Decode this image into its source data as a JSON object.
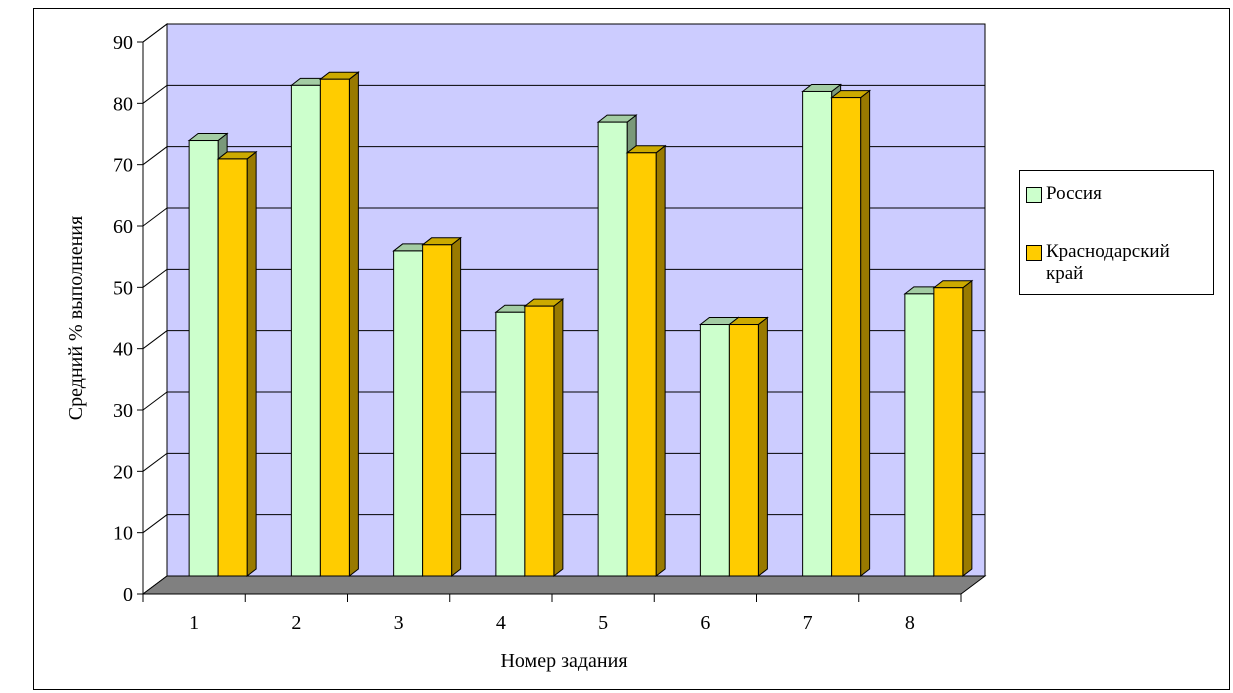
{
  "chart_data": {
    "type": "bar",
    "title": "",
    "xlabel": "Номер задания",
    "ylabel": "Средний % выполнения",
    "categories": [
      "1",
      "2",
      "3",
      "4",
      "5",
      "6",
      "7",
      "8"
    ],
    "ylim": [
      0,
      90
    ],
    "yticks": [
      "0",
      "10",
      "20",
      "30",
      "40",
      "50",
      "60",
      "70",
      "80",
      "90"
    ],
    "grid": true,
    "legend_position": "right",
    "series": [
      {
        "name": "Россия",
        "values": [
          71,
          80,
          53,
          43,
          74,
          41,
          79,
          46
        ],
        "color": "#ccffcc",
        "side_color": "#7a997a",
        "top_color": "#a3cca3"
      },
      {
        "name": "Краснодарский край",
        "values": [
          68,
          81,
          54,
          44,
          69,
          41,
          78,
          47
        ],
        "color": "#ffcc00",
        "side_color": "#997a00",
        "top_color": "#ccaa00"
      }
    ],
    "colors": {
      "back_wall": "#ccccff",
      "floor": "#808080",
      "side_wall": "#ffffff"
    }
  }
}
